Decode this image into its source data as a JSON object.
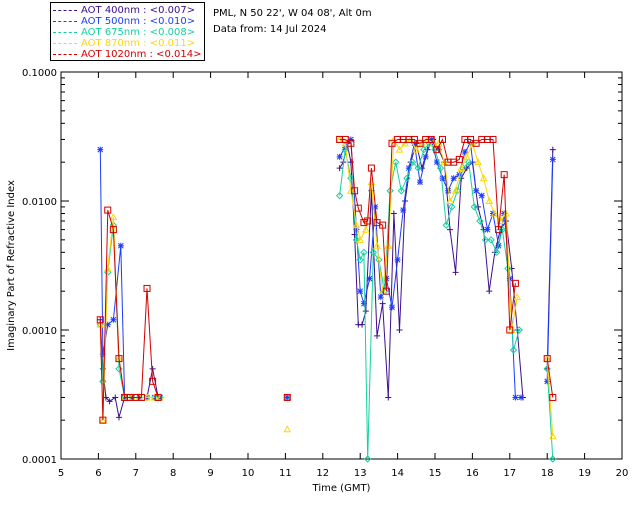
{
  "info": {
    "location": "PML, N 50 22', W 04 08', Alt 0m",
    "date": "Data from: 14 Jul 2024"
  },
  "legend": [
    {
      "label": "AOT  400nm : <0.007>",
      "color": "#3c0f8c"
    },
    {
      "label": "AOT  500nm : <0.010>",
      "color": "#1e3cff"
    },
    {
      "label": "AOT  675nm : <0.008>",
      "color": "#14d2a0"
    },
    {
      "label": "AOT  870nm : <0.011>",
      "color": "#ffd700"
    },
    {
      "label": "AOT 1020nm : <0.014>",
      "color": "#d20000"
    }
  ],
  "chart_data": {
    "type": "line",
    "xlabel": "Time (GMT)",
    "ylabel": "Imaginary Part of Refractive Index",
    "xlim": [
      5,
      20
    ],
    "ylim": [
      0.0001,
      0.1
    ],
    "y_scale": "log",
    "x_ticks": [
      "5",
      "6",
      "7",
      "8",
      "9",
      "10",
      "11",
      "12",
      "13",
      "14",
      "15",
      "16",
      "17",
      "18",
      "19",
      "20"
    ],
    "y_ticks": [
      "0.0001",
      "0.0010",
      "0.0100",
      "0.1000"
    ],
    "series": [
      {
        "name": "AOT  400nm",
        "color": "#3c0f8c",
        "marker": "plus",
        "segments": [
          [
            [
              6.05,
              0.0012
            ],
            [
              6.12,
              0.0005
            ],
            [
              6.2,
              0.0003
            ],
            [
              6.3,
              0.00028
            ],
            [
              6.45,
              0.0003
            ],
            [
              6.55,
              0.00021
            ],
            [
              6.7,
              0.0003
            ],
            [
              6.9,
              0.0003
            ],
            [
              7.1,
              0.0003
            ],
            [
              7.3,
              0.0003
            ],
            [
              7.45,
              0.0005
            ],
            [
              7.6,
              0.0003
            ]
          ],
          [
            [
              11.05,
              0.0003
            ]
          ],
          [
            [
              12.45,
              0.018
            ],
            [
              12.55,
              0.02
            ],
            [
              12.65,
              0.028
            ],
            [
              12.75,
              0.02
            ],
            [
              12.85,
              0.0055
            ],
            [
              12.95,
              0.0011
            ],
            [
              13.05,
              0.0011
            ],
            [
              13.15,
              0.0014
            ],
            [
              13.3,
              0.012
            ],
            [
              13.45,
              0.0009
            ],
            [
              13.6,
              0.0016
            ],
            [
              13.75,
              0.0003
            ],
            [
              13.9,
              0.008
            ],
            [
              14.05,
              0.001
            ],
            [
              14.2,
              0.01
            ],
            [
              14.35,
              0.02
            ],
            [
              14.5,
              0.028
            ],
            [
              14.65,
              0.018
            ],
            [
              14.8,
              0.025
            ],
            [
              14.95,
              0.03
            ],
            [
              15.1,
              0.025
            ],
            [
              15.25,
              0.02
            ],
            [
              15.4,
              0.006
            ],
            [
              15.55,
              0.0028
            ],
            [
              15.7,
              0.015
            ],
            [
              15.85,
              0.018
            ],
            [
              16.0,
              0.02
            ],
            [
              16.15,
              0.009
            ],
            [
              16.3,
              0.006
            ],
            [
              16.45,
              0.002
            ],
            [
              16.6,
              0.004
            ],
            [
              16.75,
              0.006
            ],
            [
              16.9,
              0.007
            ],
            [
              17.05,
              0.003
            ],
            [
              17.2,
              0.001
            ],
            [
              17.35,
              0.0003
            ]
          ],
          [
            [
              18.0,
              0.0005
            ],
            [
              18.15,
              0.025
            ]
          ]
        ]
      },
      {
        "name": "AOT  500nm",
        "color": "#1e3cff",
        "marker": "star",
        "segments": [
          [
            [
              6.05,
              0.025
            ],
            [
              6.12,
              0.00065
            ],
            [
              6.25,
              0.0011
            ],
            [
              6.4,
              0.0012
            ],
            [
              6.6,
              0.0045
            ],
            [
              6.7,
              0.0003
            ],
            [
              6.9,
              0.0003
            ],
            [
              7.1,
              0.0003
            ],
            [
              7.3,
              0.0003
            ],
            [
              7.5,
              0.0003
            ],
            [
              7.65,
              0.0003
            ]
          ],
          [
            [
              11.05,
              0.0003
            ]
          ],
          [
            [
              12.45,
              0.022
            ],
            [
              12.6,
              0.026
            ],
            [
              12.75,
              0.03
            ],
            [
              12.9,
              0.006
            ],
            [
              13.0,
              0.002
            ],
            [
              13.1,
              0.0016
            ],
            [
              13.25,
              0.0025
            ],
            [
              13.4,
              0.009
            ],
            [
              13.55,
              0.0018
            ],
            [
              13.7,
              0.0025
            ],
            [
              13.85,
              0.0015
            ],
            [
              14.0,
              0.0035
            ],
            [
              14.15,
              0.0085
            ],
            [
              14.3,
              0.018
            ],
            [
              14.45,
              0.028
            ],
            [
              14.6,
              0.014
            ],
            [
              14.75,
              0.022
            ],
            [
              14.9,
              0.03
            ],
            [
              15.05,
              0.02
            ],
            [
              15.2,
              0.015
            ],
            [
              15.35,
              0.012
            ],
            [
              15.5,
              0.015
            ],
            [
              15.65,
              0.016
            ],
            [
              15.8,
              0.024
            ],
            [
              15.95,
              0.028
            ],
            [
              16.1,
              0.012
            ],
            [
              16.25,
              0.011
            ],
            [
              16.4,
              0.006
            ],
            [
              16.55,
              0.008
            ],
            [
              16.7,
              0.0045
            ],
            [
              16.85,
              0.008
            ],
            [
              17.0,
              0.0025
            ],
            [
              17.15,
              0.0003
            ],
            [
              17.3,
              0.0003
            ]
          ],
          [
            [
              18.0,
              0.0004
            ],
            [
              18.15,
              0.021
            ]
          ]
        ]
      },
      {
        "name": "AOT  675nm",
        "color": "#14d2a0",
        "marker": "diamond",
        "segments": [
          [
            [
              6.05,
              0.0011
            ],
            [
              6.12,
              0.0004
            ],
            [
              6.25,
              0.0028
            ],
            [
              6.4,
              0.0065
            ],
            [
              6.55,
              0.0005
            ],
            [
              6.7,
              0.0003
            ],
            [
              6.9,
              0.0003
            ],
            [
              7.1,
              0.0003
            ],
            [
              7.3,
              0.0003
            ],
            [
              7.5,
              0.0003
            ],
            [
              7.65,
              0.0003
            ]
          ],
          [
            [
              11.05,
              0.0003
            ]
          ],
          [
            [
              12.45,
              0.011
            ],
            [
              12.6,
              0.025
            ],
            [
              12.75,
              0.015
            ],
            [
              12.9,
              0.005
            ],
            [
              13.0,
              0.0035
            ],
            [
              13.1,
              0.004
            ],
            [
              13.2,
              0.0001
            ],
            [
              13.35,
              0.004
            ],
            [
              13.5,
              0.0035
            ],
            [
              13.65,
              0.002
            ],
            [
              13.8,
              0.012
            ],
            [
              13.95,
              0.02
            ],
            [
              14.1,
              0.012
            ],
            [
              14.25,
              0.015
            ],
            [
              14.4,
              0.02
            ],
            [
              14.55,
              0.018
            ],
            [
              14.7,
              0.025
            ],
            [
              14.85,
              0.028
            ],
            [
              15.0,
              0.025
            ],
            [
              15.15,
              0.018
            ],
            [
              15.3,
              0.0065
            ],
            [
              15.45,
              0.009
            ],
            [
              15.6,
              0.012
            ],
            [
              15.75,
              0.018
            ],
            [
              15.9,
              0.02
            ],
            [
              16.05,
              0.009
            ],
            [
              16.2,
              0.007
            ],
            [
              16.35,
              0.005
            ],
            [
              16.5,
              0.005
            ],
            [
              16.65,
              0.004
            ],
            [
              16.8,
              0.006
            ],
            [
              16.95,
              0.003
            ],
            [
              17.1,
              0.0007
            ],
            [
              17.25,
              0.001
            ]
          ],
          [
            [
              18.0,
              0.0005
            ],
            [
              18.15,
              0.0001
            ]
          ]
        ]
      },
      {
        "name": "AOT  870nm",
        "color": "#ffd700",
        "marker": "triangle",
        "segments": [
          [
            [
              6.05,
              0.0011
            ],
            [
              6.12,
              0.0002
            ],
            [
              6.25,
              0.003
            ],
            [
              6.4,
              0.0075
            ],
            [
              6.55,
              0.0006
            ],
            [
              6.7,
              0.0003
            ],
            [
              6.9,
              0.0003
            ],
            [
              7.1,
              0.0003
            ],
            [
              7.3,
              0.0003
            ],
            [
              7.5,
              0.0003
            ],
            [
              7.65,
              0.0003
            ]
          ],
          [
            [
              11.05,
              0.00017
            ]
          ],
          [
            [
              12.45,
              0.03
            ],
            [
              12.6,
              0.028
            ],
            [
              12.75,
              0.012
            ],
            [
              12.9,
              0.0065
            ],
            [
              13.0,
              0.005
            ],
            [
              13.15,
              0.006
            ],
            [
              13.3,
              0.014
            ],
            [
              13.45,
              0.0045
            ],
            [
              13.6,
              0.002
            ],
            [
              13.75,
              0.0045
            ],
            [
              13.9,
              0.03
            ],
            [
              14.05,
              0.025
            ],
            [
              14.2,
              0.028
            ],
            [
              14.35,
              0.03
            ],
            [
              14.5,
              0.025
            ],
            [
              14.65,
              0.028
            ],
            [
              14.8,
              0.03
            ],
            [
              14.95,
              0.028
            ],
            [
              15.1,
              0.028
            ],
            [
              15.25,
              0.02
            ],
            [
              15.4,
              0.01
            ],
            [
              15.55,
              0.012
            ],
            [
              15.7,
              0.018
            ],
            [
              15.85,
              0.022
            ],
            [
              16.0,
              0.028
            ],
            [
              16.15,
              0.02
            ],
            [
              16.3,
              0.015
            ],
            [
              16.45,
              0.01
            ],
            [
              16.6,
              0.008
            ],
            [
              16.75,
              0.007
            ],
            [
              16.9,
              0.008
            ],
            [
              17.05,
              0.001
            ],
            [
              17.2,
              0.0018
            ]
          ],
          [
            [
              18.0,
              0.0006
            ],
            [
              18.15,
              0.00015
            ]
          ]
        ]
      },
      {
        "name": "AOT 1020nm",
        "color": "#d20000",
        "marker": "square",
        "segments": [
          [
            [
              6.05,
              0.0012
            ],
            [
              6.12,
              0.0002
            ],
            [
              6.25,
              0.0085
            ],
            [
              6.4,
              0.006
            ],
            [
              6.55,
              0.0006
            ],
            [
              6.7,
              0.0003
            ],
            [
              6.85,
              0.0003
            ],
            [
              7.0,
              0.0003
            ],
            [
              7.15,
              0.0003
            ],
            [
              7.3,
              0.0021
            ],
            [
              7.45,
              0.0004
            ],
            [
              7.6,
              0.0003
            ]
          ],
          [
            [
              11.05,
              0.0003
            ]
          ],
          [
            [
              12.45,
              0.03
            ],
            [
              12.6,
              0.03
            ],
            [
              12.75,
              0.028
            ],
            [
              12.85,
              0.012
            ],
            [
              12.95,
              0.0088
            ],
            [
              13.1,
              0.0068
            ],
            [
              13.2,
              0.007
            ],
            [
              13.3,
              0.018
            ],
            [
              13.45,
              0.0068
            ],
            [
              13.6,
              0.0065
            ],
            [
              13.7,
              0.002
            ],
            [
              13.85,
              0.028
            ],
            [
              14.0,
              0.03
            ],
            [
              14.15,
              0.03
            ],
            [
              14.3,
              0.03
            ],
            [
              14.45,
              0.03
            ],
            [
              14.6,
              0.028
            ],
            [
              14.75,
              0.03
            ],
            [
              14.9,
              0.03
            ],
            [
              15.05,
              0.025
            ],
            [
              15.2,
              0.03
            ],
            [
              15.35,
              0.02
            ],
            [
              15.5,
              0.02
            ],
            [
              15.65,
              0.021
            ],
            [
              15.8,
              0.03
            ],
            [
              15.95,
              0.03
            ],
            [
              16.1,
              0.028
            ],
            [
              16.25,
              0.03
            ],
            [
              16.4,
              0.03
            ],
            [
              16.55,
              0.03
            ],
            [
              16.7,
              0.006
            ],
            [
              16.85,
              0.016
            ],
            [
              17.0,
              0.001
            ],
            [
              17.15,
              0.0023
            ]
          ],
          [
            [
              18.0,
              0.0006
            ],
            [
              18.15,
              0.0003
            ]
          ]
        ]
      }
    ]
  }
}
